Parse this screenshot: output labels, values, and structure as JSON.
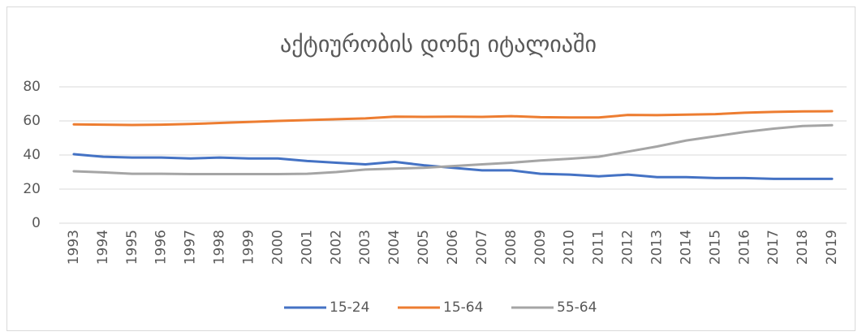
{
  "chart_data": {
    "type": "line",
    "title": "აქტიურობის დონე იტალიაში",
    "categories": [
      "1993",
      "1994",
      "1995",
      "1996",
      "1997",
      "1998",
      "1999",
      "2000",
      "2001",
      "2002",
      "2003",
      "2004",
      "2005",
      "2006",
      "2007",
      "2008",
      "2009",
      "2010",
      "2011",
      "2012",
      "2013",
      "2014",
      "2015",
      "2016",
      "2017",
      "2018",
      "2019"
    ],
    "series": [
      {
        "name": "15-24",
        "color": "#4472c4",
        "values": [
          40.5,
          39,
          38.5,
          38.5,
          38,
          38.5,
          38,
          38,
          36.5,
          35.5,
          34.5,
          36,
          34,
          32.5,
          31,
          31,
          29,
          28.5,
          27.5,
          28.5,
          27,
          27,
          26.5,
          26.5,
          26,
          26,
          26
        ]
      },
      {
        "name": "15-64",
        "color": "#ed7d31",
        "values": [
          58,
          57.8,
          57.6,
          57.8,
          58.2,
          58.8,
          59.4,
          60,
          60.5,
          61,
          61.5,
          62.5,
          62.4,
          62.5,
          62.4,
          62.8,
          62.2,
          62,
          62,
          63.5,
          63.4,
          63.7,
          64,
          64.8,
          65.3,
          65.6,
          65.7
        ]
      },
      {
        "name": "55-64",
        "color": "#a5a5a5",
        "values": [
          30.5,
          29.8,
          29,
          29,
          28.8,
          28.8,
          28.8,
          28.8,
          29,
          30,
          31.5,
          32,
          32.5,
          33.5,
          34.5,
          35.5,
          36.8,
          37.8,
          39,
          42,
          45,
          48.5,
          51,
          53.5,
          55.5,
          57,
          57.5
        ]
      }
    ],
    "ylim": [
      0,
      80
    ],
    "yticks": [
      0,
      20,
      40,
      60,
      80
    ],
    "grid": true,
    "legend": "bottom"
  }
}
